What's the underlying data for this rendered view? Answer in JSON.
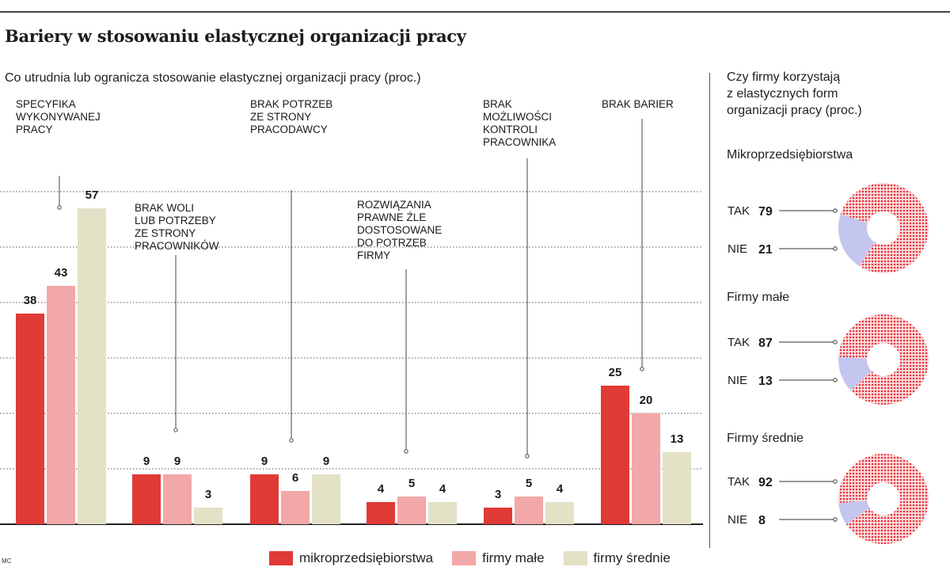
{
  "title": "Bariery w stosowaniu elastycznej organizacji pracy",
  "subtitle": "Co utrudnia lub ogranicza stosowanie elastycznej organizacji pracy (proc.)",
  "credit": "MC",
  "colors": {
    "mikro": "#e03a37",
    "male": "#f2a7a8",
    "srednie": "#e3e1c6",
    "pie_tak": "#e8333a",
    "pie_nie": "#c5c6ef"
  },
  "chart_data": [
    {
      "type": "bar",
      "categories": [
        "SPECYFIKA WYKONYWANEJ PRACY",
        "BRAK WOLI LUB POTRZEBY ZE STRONY PRACOWNIKÓW",
        "BRAK POTRZEB ZE STRONY PRACODAWCY",
        "ROZWIĄZANIA PRAWNE ŹLE DOSTOSOWANE DO POTRZEB FIRMY",
        "BRAK MOŻLIWOŚCI KONTROLI PRACOWNIKA",
        "BRAK BARIER"
      ],
      "category_label_lines": [
        [
          "SPECYFIKA",
          "WYKONYWANEJ",
          "PRACY"
        ],
        [
          "BRAK WOLI",
          "LUB POTRZEBY",
          "ZE STRONY",
          "PRACOWNIKÓW"
        ],
        [
          "BRAK POTRZEB",
          "ZE STRONY",
          "PRACODAWCY"
        ],
        [
          "ROZWIĄZANIA",
          "PRAWNE ŹLE",
          "DOSTOSOWANE",
          "DO POTRZEB",
          "FIRMY"
        ],
        [
          "BRAK",
          "MOŻLIWOŚCI",
          "KONTROLI",
          "PRACOWNIKA"
        ],
        [
          "BRAK BARIER"
        ]
      ],
      "series": [
        {
          "name": "mikroprzedsiębiorstwa",
          "values": [
            38,
            9,
            9,
            4,
            3,
            25
          ]
        },
        {
          "name": "firmy małe",
          "values": [
            43,
            9,
            6,
            5,
            5,
            20
          ]
        },
        {
          "name": "firmy średnie",
          "values": [
            57,
            3,
            9,
            4,
            4,
            13
          ]
        }
      ],
      "ylim": [
        0,
        60
      ],
      "grid": true,
      "legend_position": "bottom"
    },
    {
      "type": "pie",
      "title": "Czy firmy korzystają\nz elastycznych form\norganizacji pracy (proc.)",
      "charts": [
        {
          "name": "Mikroprzedsiębiorstwa",
          "labels": [
            "TAK",
            "NIE"
          ],
          "values": [
            79,
            21
          ]
        },
        {
          "name": "Firmy małe",
          "labels": [
            "TAK",
            "NIE"
          ],
          "values": [
            87,
            13
          ]
        },
        {
          "name": "Firmy średnie",
          "labels": [
            "TAK",
            "NIE"
          ],
          "values": [
            92,
            8
          ]
        }
      ]
    }
  ]
}
